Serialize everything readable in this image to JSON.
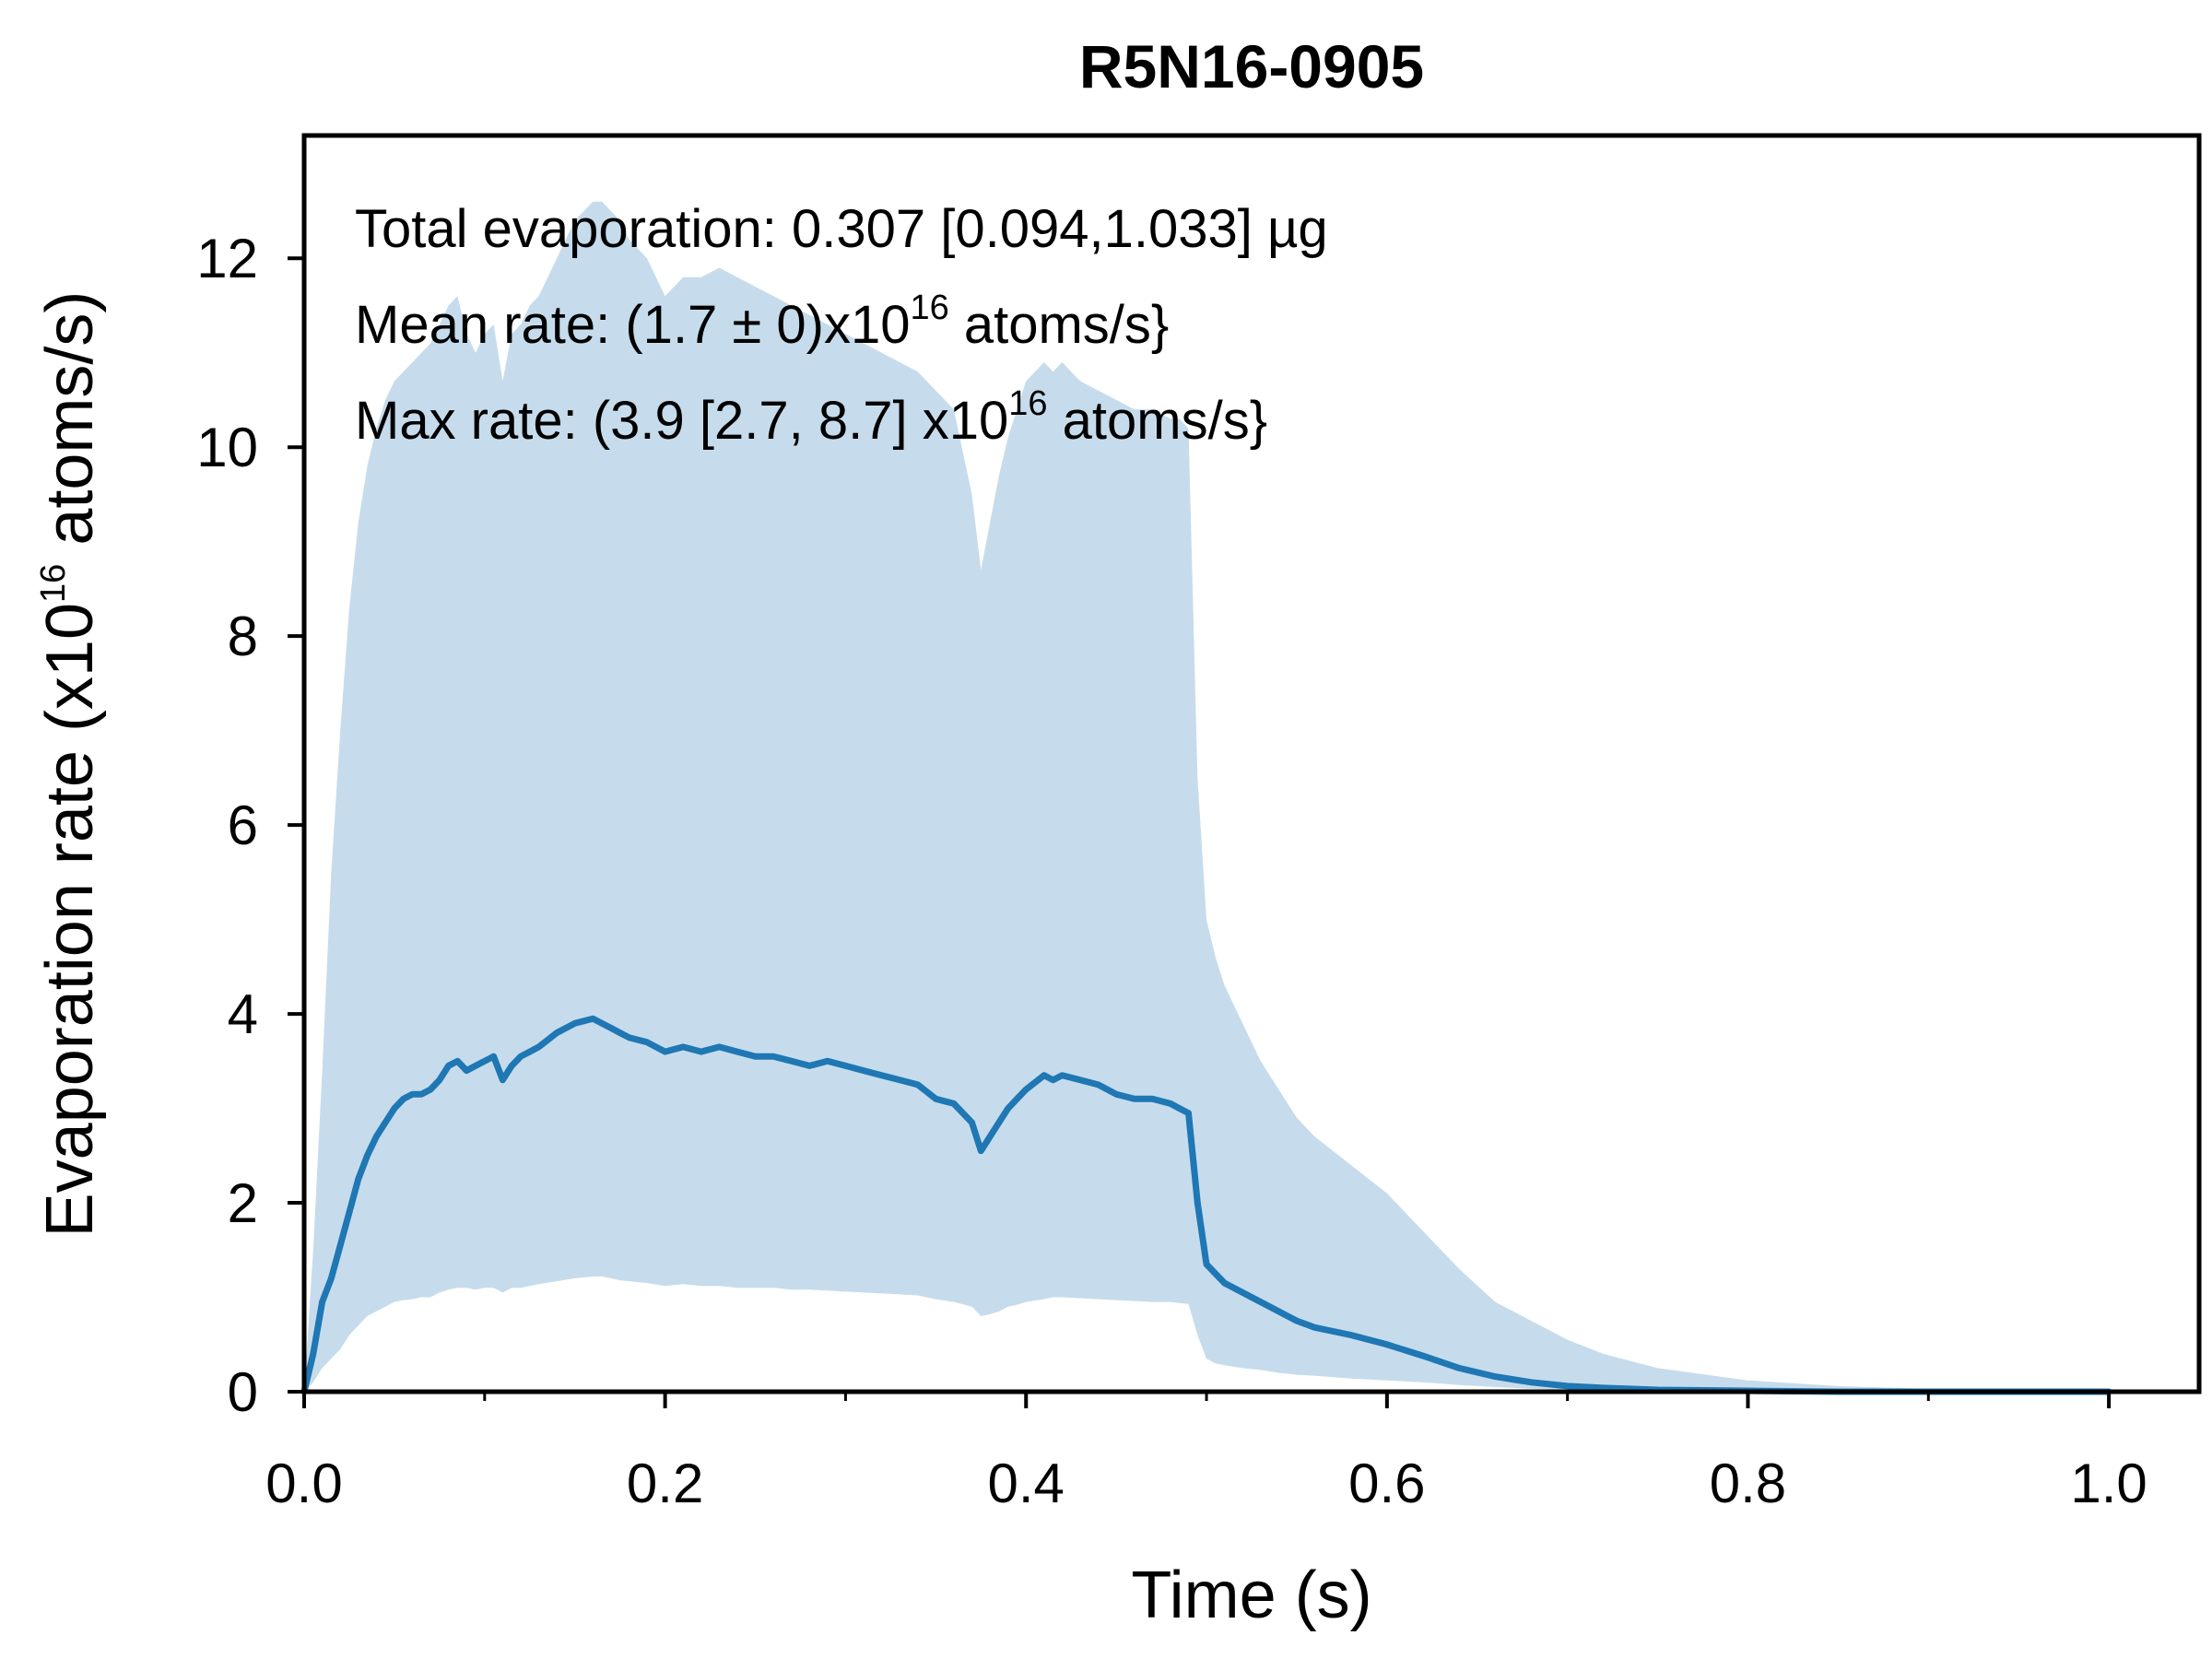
{
  "chart_data": {
    "type": "line",
    "title": "R5N16-0905",
    "xlabel": "Time (s)",
    "ylabel": {
      "prefix": "Evaporation rate (x10",
      "exp": "16",
      "suffix": " atoms/s)"
    },
    "xlim": [
      0.0,
      1.05
    ],
    "ylim": [
      0,
      13.3
    ],
    "xticks": [
      "0.0",
      "0.2",
      "0.4",
      "0.6",
      "0.8",
      "1.0"
    ],
    "yticks": [
      "0",
      "2",
      "4",
      "6",
      "8",
      "10",
      "12"
    ],
    "annotations": [
      {
        "text": "Total evaporation: 0.307 [0.094,1.033] µg"
      },
      {
        "pre": "Mean rate: (1.7 ± 0)x10",
        "exp": "16",
        "post": " atoms/s}"
      },
      {
        "pre": "Max rate: (3.9 [2.7, 8.7] x10",
        "exp": "16",
        "post": " atoms/s}"
      }
    ],
    "colors": {
      "line": "#1f77b4",
      "band": "#c6dcec"
    },
    "series": [
      {
        "x": [
          0.0,
          0.005,
          0.01,
          0.015,
          0.02,
          0.025,
          0.03,
          0.035,
          0.04,
          0.045,
          0.05,
          0.055,
          0.06,
          0.065,
          0.07,
          0.075,
          0.08,
          0.085,
          0.09,
          0.095,
          0.1,
          0.105,
          0.11,
          0.115,
          0.12,
          0.125,
          0.13,
          0.14,
          0.15,
          0.16,
          0.165,
          0.17,
          0.175,
          0.18,
          0.19,
          0.2,
          0.21,
          0.22,
          0.23,
          0.24,
          0.25,
          0.26,
          0.27,
          0.28,
          0.29,
          0.3,
          0.31,
          0.32,
          0.33,
          0.34,
          0.35,
          0.36,
          0.37,
          0.375,
          0.38,
          0.385,
          0.39,
          0.395,
          0.4,
          0.41,
          0.415,
          0.42,
          0.43,
          0.44,
          0.45,
          0.46,
          0.47,
          0.48,
          0.485,
          0.49,
          0.495,
          0.5,
          0.505,
          0.51,
          0.52,
          0.53,
          0.54,
          0.55,
          0.56,
          0.58,
          0.6,
          0.62,
          0.64,
          0.66,
          0.68,
          0.7,
          0.72,
          0.75,
          0.8,
          0.85,
          0.9,
          1.0
        ],
        "y": [
          0.0,
          0.4,
          0.95,
          1.2,
          1.55,
          1.9,
          2.25,
          2.5,
          2.7,
          2.85,
          3.0,
          3.1,
          3.15,
          3.15,
          3.2,
          3.3,
          3.45,
          3.5,
          3.4,
          3.45,
          3.5,
          3.55,
          3.3,
          3.45,
          3.55,
          3.6,
          3.65,
          3.8,
          3.9,
          3.95,
          3.9,
          3.85,
          3.8,
          3.75,
          3.7,
          3.6,
          3.65,
          3.6,
          3.65,
          3.6,
          3.55,
          3.55,
          3.5,
          3.45,
          3.5,
          3.45,
          3.4,
          3.35,
          3.3,
          3.25,
          3.1,
          3.05,
          2.85,
          2.55,
          2.7,
          2.85,
          3.0,
          3.1,
          3.2,
          3.35,
          3.3,
          3.35,
          3.3,
          3.25,
          3.15,
          3.1,
          3.1,
          3.05,
          3.0,
          2.95,
          2.0,
          1.35,
          1.25,
          1.15,
          1.05,
          0.95,
          0.85,
          0.75,
          0.68,
          0.6,
          0.5,
          0.38,
          0.25,
          0.16,
          0.1,
          0.06,
          0.04,
          0.02,
          0.01,
          0.0,
          0.0,
          0.0
        ]
      },
      {
        "x": [
          0.0,
          0.005,
          0.01,
          0.015,
          0.02,
          0.025,
          0.03,
          0.035,
          0.04,
          0.045,
          0.05,
          0.055,
          0.06,
          0.065,
          0.07,
          0.075,
          0.08,
          0.085,
          0.09,
          0.095,
          0.1,
          0.105,
          0.11,
          0.115,
          0.12,
          0.125,
          0.13,
          0.14,
          0.15,
          0.16,
          0.165,
          0.17,
          0.175,
          0.18,
          0.19,
          0.2,
          0.21,
          0.22,
          0.23,
          0.24,
          0.25,
          0.26,
          0.27,
          0.28,
          0.29,
          0.3,
          0.31,
          0.32,
          0.33,
          0.34,
          0.35,
          0.36,
          0.37,
          0.375,
          0.38,
          0.385,
          0.39,
          0.395,
          0.4,
          0.41,
          0.415,
          0.42,
          0.43,
          0.44,
          0.45,
          0.46,
          0.47,
          0.48,
          0.485,
          0.49,
          0.495,
          0.5,
          0.505,
          0.51,
          0.52,
          0.53,
          0.54,
          0.55,
          0.56,
          0.58,
          0.6,
          0.62,
          0.64,
          0.66,
          0.68,
          0.7,
          0.72,
          0.75,
          0.8,
          0.85,
          0.9,
          1.0
        ],
        "lower": [
          0.0,
          0.1,
          0.25,
          0.35,
          0.45,
          0.6,
          0.7,
          0.8,
          0.85,
          0.9,
          0.95,
          0.97,
          0.98,
          1.0,
          1.0,
          1.05,
          1.08,
          1.1,
          1.1,
          1.08,
          1.1,
          1.1,
          1.05,
          1.1,
          1.1,
          1.12,
          1.14,
          1.17,
          1.2,
          1.22,
          1.22,
          1.2,
          1.18,
          1.17,
          1.15,
          1.12,
          1.14,
          1.12,
          1.12,
          1.1,
          1.1,
          1.1,
          1.08,
          1.08,
          1.07,
          1.06,
          1.05,
          1.04,
          1.03,
          1.02,
          0.98,
          0.95,
          0.9,
          0.8,
          0.82,
          0.85,
          0.9,
          0.92,
          0.95,
          0.98,
          1.0,
          1.0,
          0.99,
          0.98,
          0.97,
          0.96,
          0.95,
          0.95,
          0.94,
          0.93,
          0.6,
          0.35,
          0.3,
          0.28,
          0.25,
          0.23,
          0.2,
          0.18,
          0.17,
          0.14,
          0.12,
          0.1,
          0.07,
          0.05,
          0.03,
          0.02,
          0.015,
          0.01,
          0.0,
          0.0,
          0.0,
          0.0
        ],
        "upper": [
          0.0,
          1.5,
          3.4,
          5.5,
          7.0,
          8.3,
          9.2,
          9.8,
          10.2,
          10.5,
          10.7,
          10.8,
          10.9,
          11.0,
          11.1,
          11.3,
          11.5,
          11.6,
          11.2,
          11.0,
          11.2,
          11.3,
          10.7,
          11.2,
          11.3,
          11.5,
          11.6,
          12.0,
          12.4,
          12.6,
          12.6,
          12.5,
          12.4,
          12.2,
          12.0,
          11.6,
          11.8,
          11.8,
          11.9,
          11.8,
          11.7,
          11.6,
          11.5,
          11.4,
          11.3,
          11.2,
          11.1,
          11.0,
          10.9,
          10.8,
          10.6,
          10.4,
          9.5,
          8.7,
          9.2,
          9.7,
          10.1,
          10.4,
          10.7,
          10.9,
          10.8,
          10.9,
          10.7,
          10.6,
          10.5,
          10.4,
          10.4,
          10.3,
          10.3,
          10.2,
          6.5,
          5.0,
          4.6,
          4.3,
          3.9,
          3.5,
          3.2,
          2.9,
          2.7,
          2.4,
          2.1,
          1.7,
          1.3,
          0.95,
          0.75,
          0.55,
          0.4,
          0.25,
          0.12,
          0.06,
          0.03,
          0.01
        ]
      }
    ]
  }
}
